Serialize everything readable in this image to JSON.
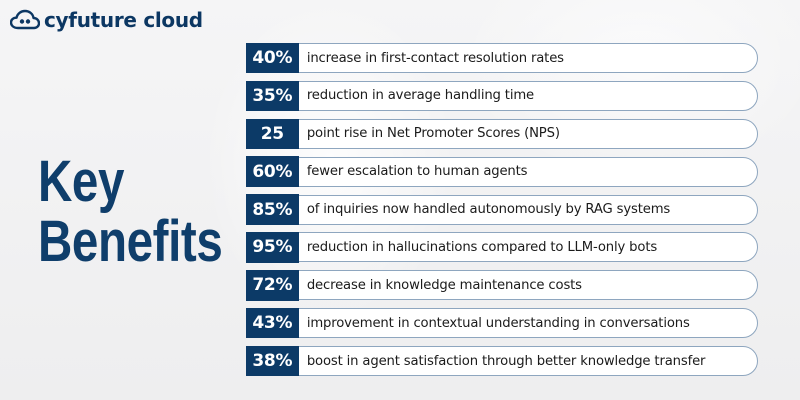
{
  "brand": {
    "name": "cyfuture cloud",
    "logo_icon": "cloud-icon",
    "color": "#0c3763"
  },
  "title": {
    "line1": "Key",
    "line2": "Benefits",
    "color": "#0f3e6b"
  },
  "accent_color": "#0c3a67",
  "benefits": [
    {
      "value": "40%",
      "text": "increase in first-contact resolution rates"
    },
    {
      "value": "35%",
      "text": "reduction in average handling time"
    },
    {
      "value": "25",
      "text": "point rise in Net Promoter Scores (NPS)"
    },
    {
      "value": "60%",
      "text": "fewer escalation to human agents"
    },
    {
      "value": "85%",
      "text": "of inquiries now handled autonomously by RAG systems"
    },
    {
      "value": "95%",
      "text": "reduction in hallucinations compared to LLM-only bots"
    },
    {
      "value": "72%",
      "text": "decrease in knowledge maintenance costs"
    },
    {
      "value": "43%",
      "text": "improvement in contextual understanding in conversations"
    },
    {
      "value": "38%",
      "text": "boost in agent satisfaction through better knowledge transfer"
    }
  ]
}
